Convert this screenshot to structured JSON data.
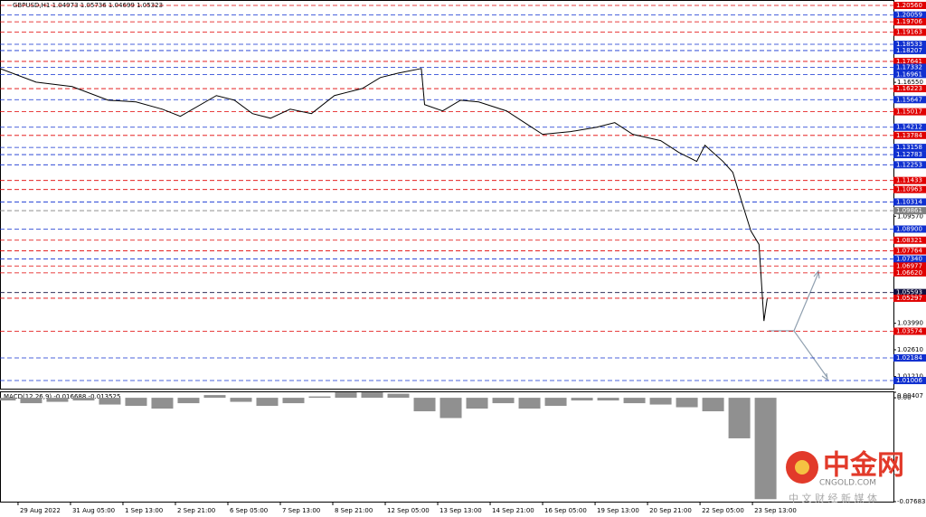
{
  "chart_data": [
    {
      "type": "line",
      "title": "GBPUSD,H1  1.04973 1.05736 1.04699 1.05323",
      "x": [
        -11,
        11,
        33,
        55,
        72,
        88,
        99,
        121,
        132,
        143,
        154,
        166,
        179,
        193,
        210,
        221,
        232,
        246,
        248,
        259,
        270,
        281,
        298,
        309,
        320,
        337,
        353,
        364,
        375,
        392,
        403,
        414,
        419,
        430,
        436,
        441,
        447,
        452,
        455,
        457
      ],
      "series": [
        {
          "color": "#000000",
          "values": [
            1.1727,
            1.1656,
            1.1633,
            1.1562,
            1.1553,
            1.1515,
            1.1478,
            1.1586,
            1.1562,
            1.1492,
            1.1468,
            1.1515,
            1.1492,
            1.1586,
            1.1623,
            1.168,
            1.1703,
            1.1727,
            1.1539,
            1.1506,
            1.1562,
            1.1553,
            1.1506,
            1.1445,
            1.1384,
            1.1398,
            1.1421,
            1.1445,
            1.1384,
            1.1351,
            1.129,
            1.1243,
            1.1327,
            1.1243,
            1.1186,
            1.1045,
            1.0881,
            1.081,
            1.0411,
            1.0528
          ]
        }
      ],
      "xlim": [
        -11,
        534
      ],
      "xticks": [
        {
          "value": 0,
          "label": "29 Aug 2022"
        },
        {
          "value": 32,
          "label": "31 Aug 05:00"
        },
        {
          "value": 64,
          "label": "1 Sep 13:00"
        },
        {
          "value": 96,
          "label": "2 Sep 21:00"
        },
        {
          "value": 128,
          "label": "6 Sep 05:00"
        },
        {
          "value": 160,
          "label": "7 Sep 13:00"
        },
        {
          "value": 192,
          "label": "8 Sep 21:00"
        },
        {
          "value": 224,
          "label": "12 Sep 05:00"
        },
        {
          "value": 256,
          "label": "13 Sep 13:00"
        },
        {
          "value": 288,
          "label": "14 Sep 21:00"
        },
        {
          "value": 320,
          "label": "16 Sep 05:00"
        },
        {
          "value": 352,
          "label": "19 Sep 13:00"
        },
        {
          "value": 384,
          "label": "20 Sep 21:00"
        },
        {
          "value": 416,
          "label": "22 Sep 05:00"
        },
        {
          "value": 448,
          "label": "23 Sep 13:00"
        }
      ],
      "ylim": [
        1.00583,
        1.20795
      ],
      "yticks": [
        {
          "value": 1.1655,
          "label": "1.16550"
        },
        {
          "value": 1.0957,
          "label": "1.09570"
        },
        {
          "value": 1.0399,
          "label": "1.03990"
        },
        {
          "value": 1.0261,
          "label": "1.02610"
        },
        {
          "value": 1.0121,
          "label": "1.01210"
        }
      ],
      "levels": [
        {
          "value": 1.2056,
          "label": "1.20560",
          "color": "#e00000"
        },
        {
          "value": 1.20059,
          "label": "1.20059",
          "color": "#1030d0"
        },
        {
          "value": 1.19706,
          "label": "1.19706",
          "color": "#e00000"
        },
        {
          "value": 1.19163,
          "label": "1.19163",
          "color": "#e00000"
        },
        {
          "value": 1.18533,
          "label": "1.18533",
          "color": "#1030d0"
        },
        {
          "value": 1.18207,
          "label": "1.18207",
          "color": "#1030d0"
        },
        {
          "value": 1.17641,
          "label": "1.17641",
          "color": "#e00000"
        },
        {
          "value": 1.17332,
          "label": "1.17332",
          "color": "#1030d0"
        },
        {
          "value": 1.16961,
          "label": "1.16961",
          "color": "#1030d0"
        },
        {
          "value": 1.16223,
          "label": "1.16223",
          "color": "#e00000"
        },
        {
          "value": 1.15647,
          "label": "1.15647",
          "color": "#1030d0"
        },
        {
          "value": 1.15017,
          "label": "1.15017",
          "color": "#e00000"
        },
        {
          "value": 1.14212,
          "label": "1.14212",
          "color": "#1030d0"
        },
        {
          "value": 1.13784,
          "label": "1.13784",
          "color": "#e00000"
        },
        {
          "value": 1.13158,
          "label": "1.13158",
          "color": "#1030d0"
        },
        {
          "value": 1.12783,
          "label": "1.12783",
          "color": "#1030d0"
        },
        {
          "value": 1.12253,
          "label": "1.12253",
          "color": "#1030d0"
        },
        {
          "value": 1.11433,
          "label": "1.11433",
          "color": "#e00000"
        },
        {
          "value": 1.10963,
          "label": "1.10963",
          "color": "#e00000"
        },
        {
          "value": 1.10314,
          "label": "1.10314",
          "color": "#1030d0"
        },
        {
          "value": 1.09861,
          "label": "1.09861",
          "color": "#808080"
        },
        {
          "value": 1.089,
          "label": "1.08900",
          "color": "#1030d0"
        },
        {
          "value": 1.08321,
          "label": "1.08321",
          "color": "#e00000"
        },
        {
          "value": 1.07764,
          "label": "1.07764",
          "color": "#e00000"
        },
        {
          "value": 1.0734,
          "label": "1.07340",
          "color": "#1030d0"
        },
        {
          "value": 1.06977,
          "label": "1.06977",
          "color": "#e00000"
        },
        {
          "value": 1.0662,
          "label": "1.06620",
          "color": "#e00000"
        },
        {
          "value": 1.05593,
          "label": "1.05593",
          "color": "#101040"
        },
        {
          "value": 1.05297,
          "label": "1.05297",
          "color": "#e00000"
        },
        {
          "value": 1.03574,
          "label": "1.03574",
          "color": "#e00000"
        },
        {
          "value": 1.02184,
          "label": "1.02184",
          "color": "#1030d0"
        },
        {
          "value": 1.01006,
          "label": "1.01006",
          "color": "#1030d0"
        }
      ]
    },
    {
      "type": "bar",
      "title": "MACD(12,26,9) -0.016688 -0.013525",
      "color": "#909090",
      "x": [
        -8,
        8,
        24,
        40,
        56,
        72,
        88,
        104,
        120,
        136,
        152,
        168,
        184,
        200,
        216,
        232,
        248,
        264,
        280,
        296,
        312,
        328,
        344,
        360,
        376,
        392,
        408,
        424,
        440,
        456
      ],
      "values": [
        -0.002,
        -0.004,
        -0.003,
        -0.002,
        -0.005,
        -0.006,
        -0.008,
        -0.004,
        0.002,
        -0.003,
        -0.006,
        -0.004,
        0.001,
        0.004,
        0.004,
        0.003,
        -0.01,
        -0.015,
        -0.008,
        -0.004,
        -0.008,
        -0.006,
        -0.002,
        -0.002,
        -0.004,
        -0.005,
        -0.007,
        -0.01,
        -0.03,
        -0.075
      ],
      "ylim": [
        -0.07683,
        0.00407
      ],
      "yticks": [
        {
          "value": 0.00407,
          "label": "0.00407"
        },
        {
          "value": 0,
          "label": "0.00"
        },
        {
          "value": -0.07683,
          "label": "-0.07683"
        }
      ]
    }
  ],
  "watermark": {
    "name": "中金网",
    "site": "CNGOLD.COM",
    "slogan": "中 文 财 经 新 媒 体"
  }
}
